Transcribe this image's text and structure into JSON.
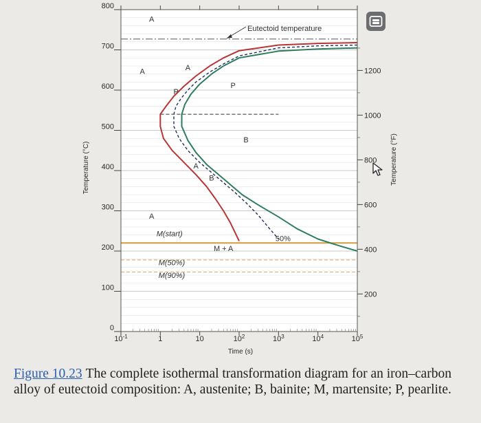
{
  "chart_data": {
    "type": "line",
    "title": "",
    "xlabel": "Time (s)",
    "ylabel": "Temperature (°C)",
    "ylabel_right": "Temperature (°F)",
    "x_scale": "log",
    "xlim": [
      0.1,
      100000
    ],
    "ylim": [
      0,
      800
    ],
    "y_ticks": [
      0,
      100,
      200,
      300,
      400,
      500,
      600,
      700,
      800
    ],
    "x_ticks": [
      {
        "value": 0.1,
        "label": "10",
        "sup": "-1"
      },
      {
        "value": 1,
        "label": "1",
        "sup": ""
      },
      {
        "value": 10,
        "label": "10",
        "sup": ""
      },
      {
        "value": 100,
        "label": "10",
        "sup": "2"
      },
      {
        "value": 1000,
        "label": "10",
        "sup": "3"
      },
      {
        "value": 10000,
        "label": "10",
        "sup": "4"
      },
      {
        "value": 100000,
        "label": "10",
        "sup": "5"
      }
    ],
    "right_ticks": [
      {
        "value_f": 200,
        "label": "200"
      },
      {
        "value_f": 400,
        "label": "400"
      },
      {
        "value_f": 600,
        "label": "600"
      },
      {
        "value_f": 800,
        "label": "800"
      },
      {
        "value_f": 1000,
        "label": "1000"
      },
      {
        "value_f": 1200,
        "label": "1200"
      }
    ],
    "series": [
      {
        "role": "start",
        "color": "#b73535",
        "x": [
          100000,
          10000,
          1000,
          100,
          40,
          18,
          8,
          4,
          2.2,
          1.4,
          1,
          1,
          1.2,
          2,
          4,
          8,
          15,
          25,
          40,
          60,
          80,
          100
        ],
        "y": [
          718,
          716,
          712,
          698,
          680,
          660,
          635,
          610,
          585,
          560,
          540,
          510,
          480,
          450,
          420,
          390,
          360,
          330,
          300,
          270,
          245,
          225
        ]
      },
      {
        "role": "50% completion",
        "style": "dashed",
        "color": "#1f2f5c",
        "x": [
          100000,
          10000,
          1000,
          100,
          40,
          18,
          8,
          5,
          3.4,
          2.5,
          2.2,
          2.2,
          3,
          5,
          10,
          20,
          40,
          80,
          150,
          300,
          600,
          1000
        ],
        "y": [
          712,
          710,
          705,
          685,
          665,
          645,
          620,
          600,
          580,
          560,
          540,
          510,
          480,
          450,
          420,
          395,
          370,
          345,
          320,
          290,
          255,
          230
        ]
      },
      {
        "role": "finish",
        "color": "#2e7d5e",
        "x": [
          100000,
          10000,
          1000,
          100,
          40,
          20,
          10,
          6,
          4.2,
          3.5,
          3.5,
          5,
          8,
          15,
          30,
          60,
          120,
          300,
          1000,
          3000,
          10000,
          30000,
          100000
        ],
        "y": [
          705,
          702,
          697,
          680,
          660,
          640,
          615,
          590,
          565,
          540,
          510,
          475,
          445,
          415,
          390,
          365,
          340,
          315,
          285,
          255,
          230,
          215,
          200
        ]
      }
    ],
    "horizontal_lines": [
      {
        "name": "Eutectoid temperature",
        "y": 727,
        "style": "dash-dot",
        "color": "#555555"
      },
      {
        "name": "M(start)",
        "y": 220,
        "style": "solid",
        "color": "#d29b3c"
      },
      {
        "name": "M(50%)",
        "y": 178,
        "style": "dashed",
        "color": "#d9a25a"
      },
      {
        "name": "M(90%)",
        "y": 148,
        "style": "dashed",
        "color": "#d9a25a"
      },
      {
        "name": "pearlite-bainite boundary",
        "y": 540,
        "style": "dashed",
        "color": "#333333",
        "x_from": 1,
        "x_to": 1000
      }
    ],
    "annotations": [
      {
        "text": "A",
        "x": 0.6,
        "y": 770
      },
      {
        "text": "A",
        "x": 0.35,
        "y": 640
      },
      {
        "text": "A",
        "x": 0.6,
        "y": 280
      },
      {
        "text": "P",
        "x": 70,
        "y": 605
      },
      {
        "text": "B",
        "x": 150,
        "y": 470
      },
      {
        "text": "M + A",
        "x": 40,
        "y": 200
      },
      {
        "text": "50%",
        "x": 1300,
        "y": 225
      },
      {
        "text": "P",
        "x": 2.5,
        "y": 590
      },
      {
        "text": "A",
        "x": 5,
        "y": 650
      },
      {
        "text": "A",
        "x": 8,
        "y": 405
      },
      {
        "text": "B",
        "x": 20,
        "y": 375
      },
      {
        "text": "M(start)",
        "x": 0.8,
        "y": 237
      },
      {
        "text": "M(50%)",
        "x": 0.9,
        "y": 165
      },
      {
        "text": "M(90%)",
        "x": 0.9,
        "y": 133
      }
    ]
  },
  "caption": {
    "figure_ref": "Figure 10.23",
    "text": "The complete isothermal transformation diagram for an iron–carbon alloy of eutectoid composition: A, austenite; B, bainite; M, martensite; P, pearlite."
  },
  "icons": {
    "pip": "picture-in-picture-icon",
    "cursor": "mouse-pointer-icon"
  }
}
